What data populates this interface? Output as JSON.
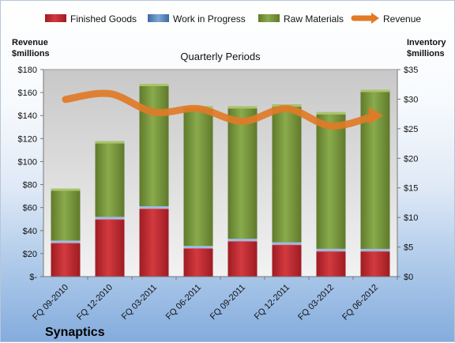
{
  "company_label": "Synaptics",
  "chart_data": {
    "type": "bar",
    "stacked": true,
    "title": "Quarterly Periods",
    "categories": [
      "FQ 09-2010",
      "FQ 12-2010",
      "FQ 03-2011",
      "FQ 06-2011",
      "FQ 09-2011",
      "FQ 12-2011",
      "FQ 03-2012",
      "FQ 06-2012"
    ],
    "series": [
      {
        "name": "Finished Goods",
        "axis": "right",
        "color": "#c0262d",
        "values": [
          6.0,
          10.0,
          11.8,
          5.1,
          6.3,
          5.7,
          4.6,
          4.6
        ]
      },
      {
        "name": "Work in Progress",
        "axis": "right",
        "color": "#4f81bd",
        "values": [
          0.1,
          0.1,
          0.1,
          0.1,
          0.1,
          0.1,
          0.1,
          0.1
        ]
      },
      {
        "name": "Raw Materials",
        "axis": "right",
        "color": "#76923c",
        "values": [
          8.8,
          12.8,
          20.7,
          23.6,
          22.4,
          23.3,
          23.1,
          26.9
        ]
      },
      {
        "name": "Revenue",
        "type": "line",
        "axis": "left",
        "color": "#e07b27",
        "values": [
          154,
          159,
          143,
          146,
          135,
          146,
          131,
          140
        ]
      }
    ],
    "y_left": {
      "label_line1": "Revenue",
      "label_line2": "$millions",
      "ylim": [
        0,
        180
      ],
      "ticks": [
        0,
        20,
        40,
        60,
        80,
        100,
        120,
        140,
        160,
        180
      ],
      "tick_labels": [
        "$-",
        "$20",
        "$40",
        "$60",
        "$80",
        "$100",
        "$120",
        "$140",
        "$160",
        "$180"
      ]
    },
    "y_right": {
      "label_line1": "Inventory",
      "label_line2": "$millions",
      "ylim": [
        0,
        35
      ],
      "ticks": [
        0,
        5,
        10,
        15,
        20,
        25,
        30,
        35
      ],
      "tick_labels": [
        "$0",
        "$5",
        "$10",
        "$15",
        "$20",
        "$25",
        "$30",
        "$35"
      ]
    },
    "legend_position": "top",
    "grid": false
  }
}
